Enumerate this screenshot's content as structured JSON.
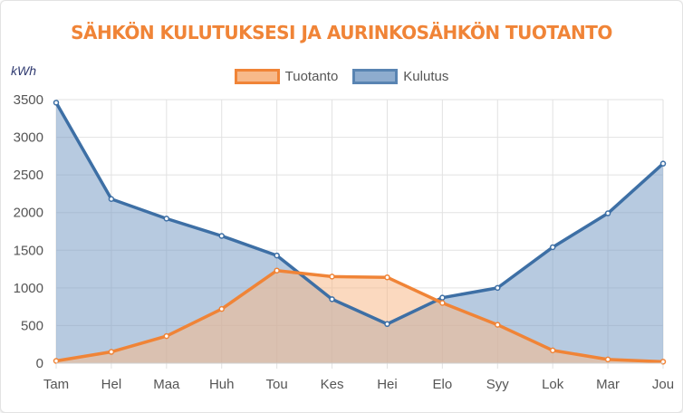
{
  "chart_data": {
    "type": "area",
    "title": "SÄHKÖN KULUTUKSESI JA AURINKOSÄHKÖN TUOTANTO",
    "ylabel": "kWh",
    "xlabel": "",
    "categories": [
      "Tam",
      "Hel",
      "Maa",
      "Huh",
      "Tou",
      "Kes",
      "Hei",
      "Elo",
      "Syy",
      "Lok",
      "Mar",
      "Jou"
    ],
    "ylim": [
      0,
      3500
    ],
    "yticks": [
      0,
      500,
      1000,
      1500,
      2000,
      2500,
      3000,
      3500
    ],
    "grid": true,
    "legend_position": "top-center",
    "series": [
      {
        "name": "Tuotanto",
        "values": [
          30,
          150,
          360,
          720,
          1230,
          1150,
          1140,
          800,
          510,
          170,
          50,
          20
        ],
        "color": "#f08437",
        "fill": "#f7b98a"
      },
      {
        "name": "Kulutus",
        "values": [
          3460,
          2180,
          1920,
          1690,
          1430,
          850,
          520,
          870,
          1000,
          1540,
          1990,
          2650
        ],
        "color": "#3d6fa5",
        "fill": "#7b9ec6"
      }
    ]
  }
}
